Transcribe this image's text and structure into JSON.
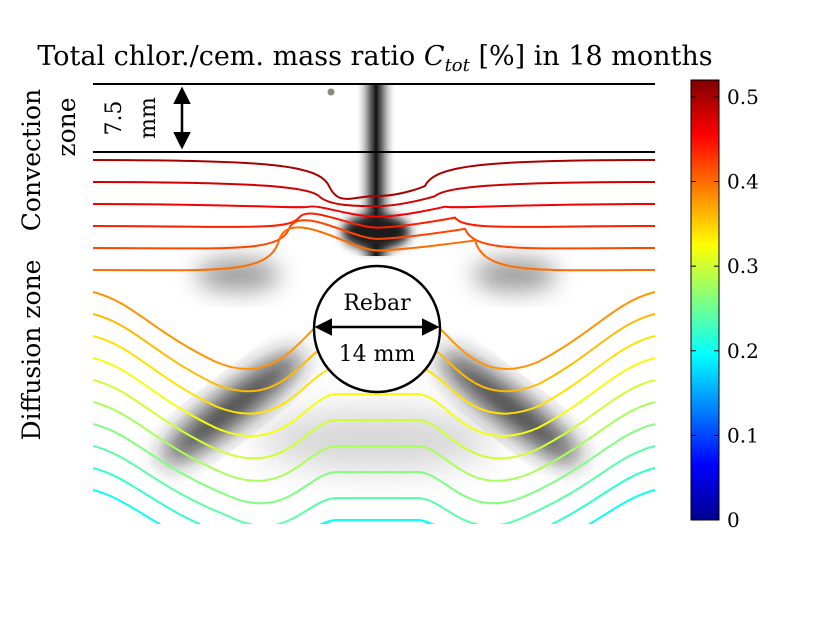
{
  "chart_data": {
    "type": "heatmap",
    "title_prefix": "Total chlor./cem. mass ratio ",
    "title_symbol": "C",
    "title_subscript": "tot",
    "title_suffix": " [%] in 18 months",
    "zone_labels": {
      "convection_line1": "Convection",
      "convection_line2": "zone",
      "diffusion": "Diffusion zone"
    },
    "annotations": {
      "depth_value": "7.5",
      "depth_unit": "mm",
      "rebar_label": "Rebar",
      "rebar_diameter": "14 mm"
    },
    "colorbar": {
      "min": 0,
      "max": 0.52,
      "ticks": [
        0,
        0.1,
        0.2,
        0.3,
        0.4,
        0.5
      ],
      "tick_labels": [
        "0",
        "0.1",
        "0.2",
        "0.3",
        "0.4",
        "0.5"
      ],
      "colormap": "jet"
    },
    "contour_levels": [
      0.5,
      0.48,
      0.46,
      0.44,
      0.42,
      0.4,
      0.38,
      0.36,
      0.34,
      0.32,
      0.3,
      0.28,
      0.26,
      0.24,
      0.22,
      0.2
    ],
    "dimensions": {
      "convection_zone_depth_mm": 7.5,
      "rebar_diameter_mm": 14
    }
  }
}
